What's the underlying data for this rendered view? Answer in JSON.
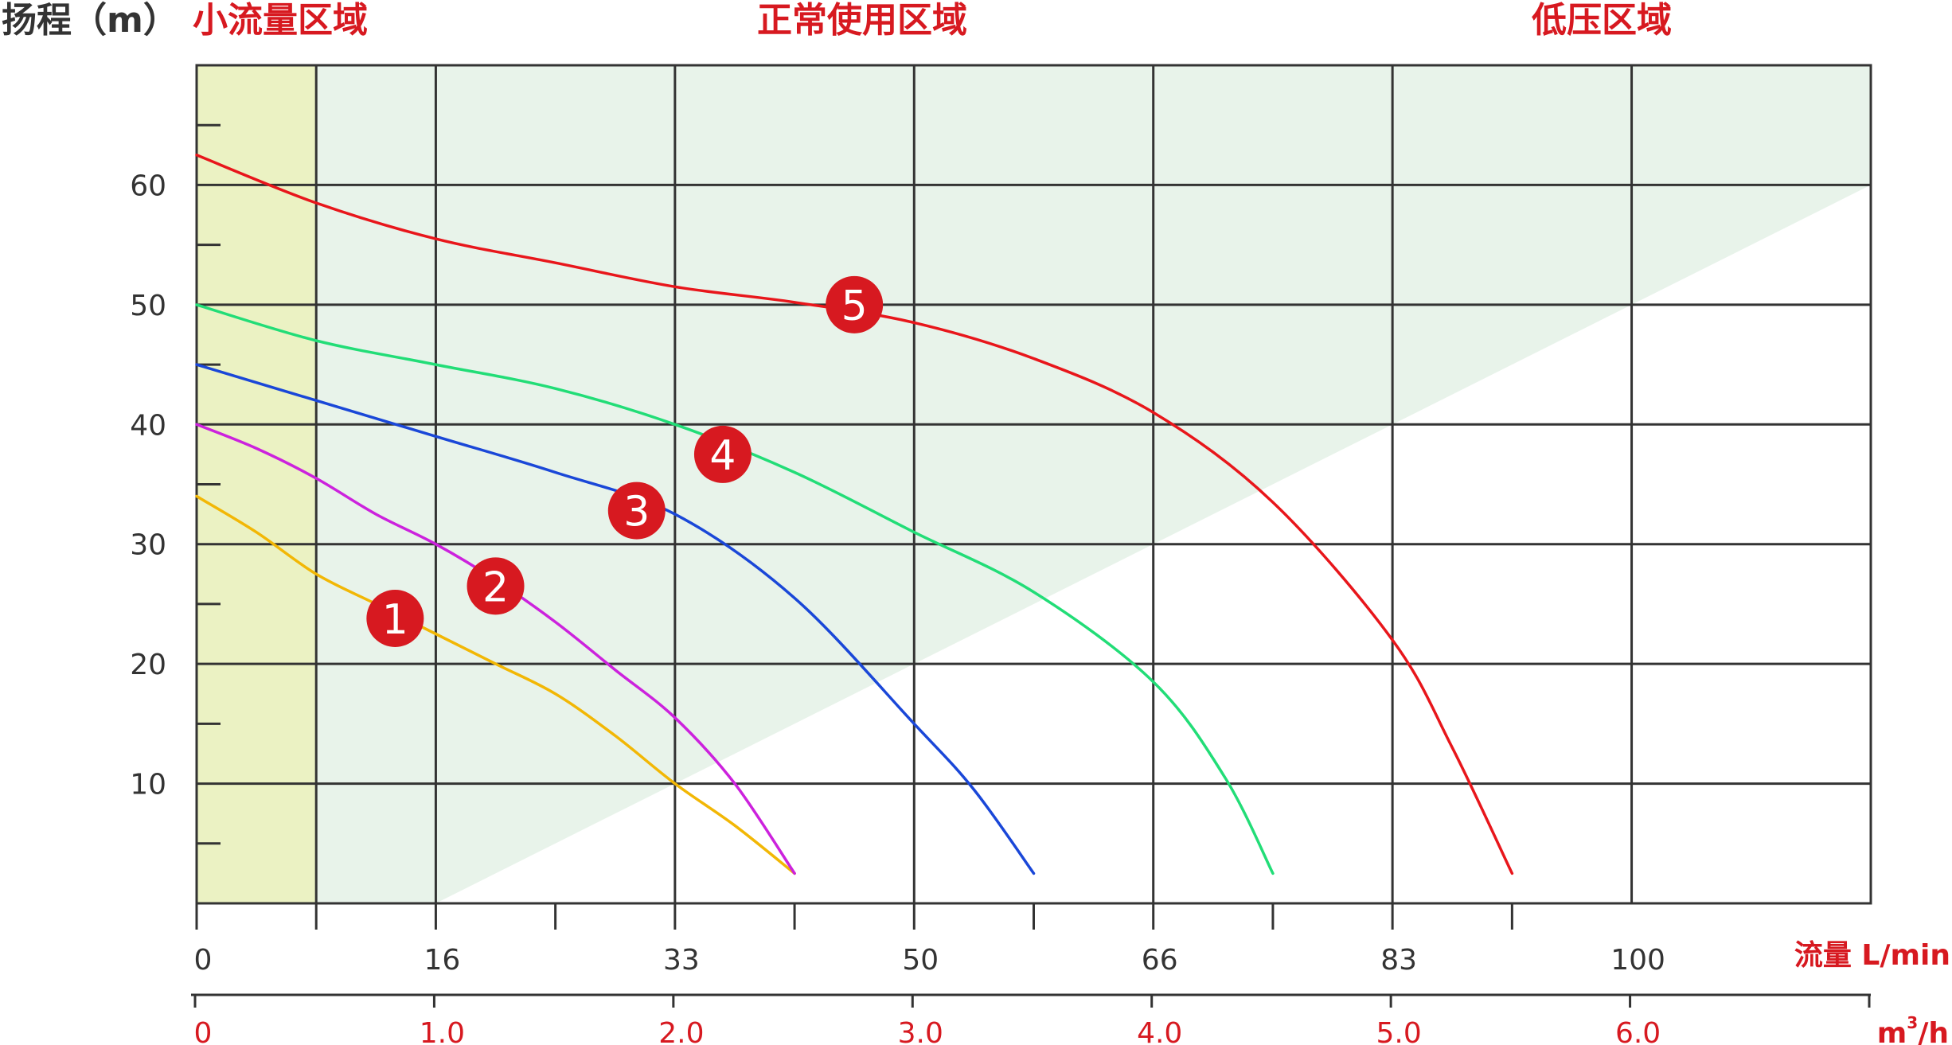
{
  "chart_data": {
    "type": "line",
    "ylabel": "扬程（m）",
    "xlabel_lmin": "流量 L/min",
    "xlabel_m3h_base": "m",
    "xlabel_m3h_sup": "3",
    "xlabel_m3h_tail": "/h",
    "ylim": [
      0,
      70
    ],
    "y_ticks": [
      10,
      20,
      30,
      40,
      50,
      60
    ],
    "xlim": [
      0,
      7.0
    ],
    "x_ticks_lmin": [
      "0",
      "16",
      "33",
      "50",
      "66",
      "83",
      "100"
    ],
    "x_ticks_m3h": [
      "0",
      "1.0",
      "2.0",
      "3.0",
      "4.0",
      "5.0",
      "6.0"
    ],
    "grid": true,
    "regions": [
      {
        "label": "小流量区域",
        "x_from": 0,
        "x_to": 0.5,
        "color": "#ebf2c3"
      },
      {
        "label": "正常使用区域",
        "color": "#e8f3ea"
      },
      {
        "label": "低压区域"
      }
    ],
    "series": [
      {
        "name": "1",
        "color": "#f2b705",
        "label_at": [
          0.83,
          23.8
        ],
        "x": [
          0,
          0.25,
          0.5,
          0.75,
          1.0,
          1.25,
          1.5,
          1.75,
          2.0,
          2.25,
          2.5
        ],
        "y": [
          34.0,
          31.0,
          27.5,
          25.0,
          22.5,
          20.0,
          17.5,
          14.0,
          10.0,
          6.5,
          2.5
        ]
      },
      {
        "name": "2",
        "color": "#cc22dd",
        "label_at": [
          1.25,
          26.5
        ],
        "x": [
          0,
          0.25,
          0.5,
          0.75,
          1.0,
          1.25,
          1.5,
          1.75,
          2.0,
          2.25,
          2.5
        ],
        "y": [
          40.0,
          38.0,
          35.5,
          32.5,
          30.0,
          27.0,
          23.5,
          19.5,
          15.5,
          10.0,
          2.5
        ]
      },
      {
        "name": "3",
        "color": "#1a47d8",
        "label_at": [
          1.84,
          32.8
        ],
        "x": [
          0,
          0.5,
          1.0,
          1.5,
          2.0,
          2.5,
          3.0,
          3.25,
          3.5
        ],
        "y": [
          45.0,
          42.0,
          39.0,
          36.0,
          32.5,
          25.5,
          15.0,
          9.5,
          2.5
        ]
      },
      {
        "name": "4",
        "color": "#22dd77",
        "label_at": [
          2.2,
          37.5
        ],
        "x": [
          0,
          0.5,
          1.0,
          1.5,
          2.0,
          2.5,
          3.0,
          3.5,
          4.0,
          4.3,
          4.5
        ],
        "y": [
          50.0,
          47.0,
          45.0,
          43.0,
          40.0,
          36.0,
          31.0,
          26.0,
          18.5,
          10.5,
          2.5
        ]
      },
      {
        "name": "5",
        "color": "#e8161b",
        "label_at": [
          2.75,
          50.0
        ],
        "x": [
          0,
          0.5,
          1.0,
          1.5,
          2.0,
          2.5,
          3.0,
          3.5,
          4.0,
          4.5,
          5.0,
          5.25,
          5.5
        ],
        "y": [
          62.5,
          58.5,
          55.5,
          53.5,
          51.5,
          50.2,
          48.5,
          45.5,
          41.0,
          33.5,
          22.0,
          13.0,
          2.5
        ]
      }
    ]
  }
}
